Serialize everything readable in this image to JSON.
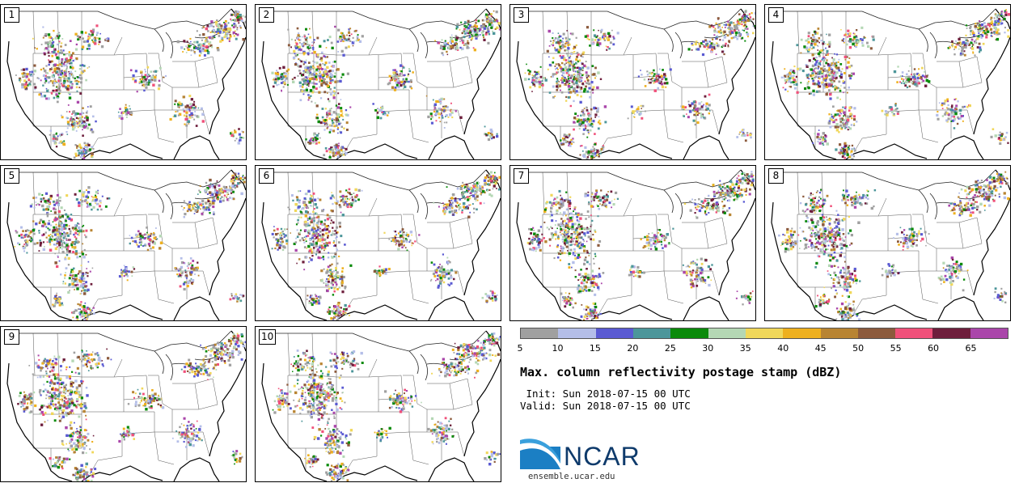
{
  "figure": {
    "title": "Max. column reflectivity postage stamp (dBZ)",
    "init": " Init: Sun 2018-07-15 00 UTC",
    "valid": "Valid: Sun 2018-07-15 00 UTC"
  },
  "panels": [
    {
      "label": "1"
    },
    {
      "label": "2"
    },
    {
      "label": "3"
    },
    {
      "label": "4"
    },
    {
      "label": "5"
    },
    {
      "label": "6"
    },
    {
      "label": "7"
    },
    {
      "label": "8"
    },
    {
      "label": "9"
    },
    {
      "label": "10"
    }
  ],
  "colorbar": {
    "ticks": [
      "5",
      "10",
      "15",
      "20",
      "25",
      "30",
      "35",
      "40",
      "45",
      "50",
      "55",
      "60",
      "65"
    ],
    "colors": [
      "#a0a0a0",
      "#b4bee8",
      "#5a5ad2",
      "#4c969a",
      "#0a8a0a",
      "#b4d7b4",
      "#f0d75a",
      "#eeb01e",
      "#b88432",
      "#8c5a3c",
      "#f0507a",
      "#6e1e3c",
      "#aa46aa"
    ]
  },
  "logo": {
    "name": "NCAR",
    "url": "ensemble.ucar.edu"
  }
}
